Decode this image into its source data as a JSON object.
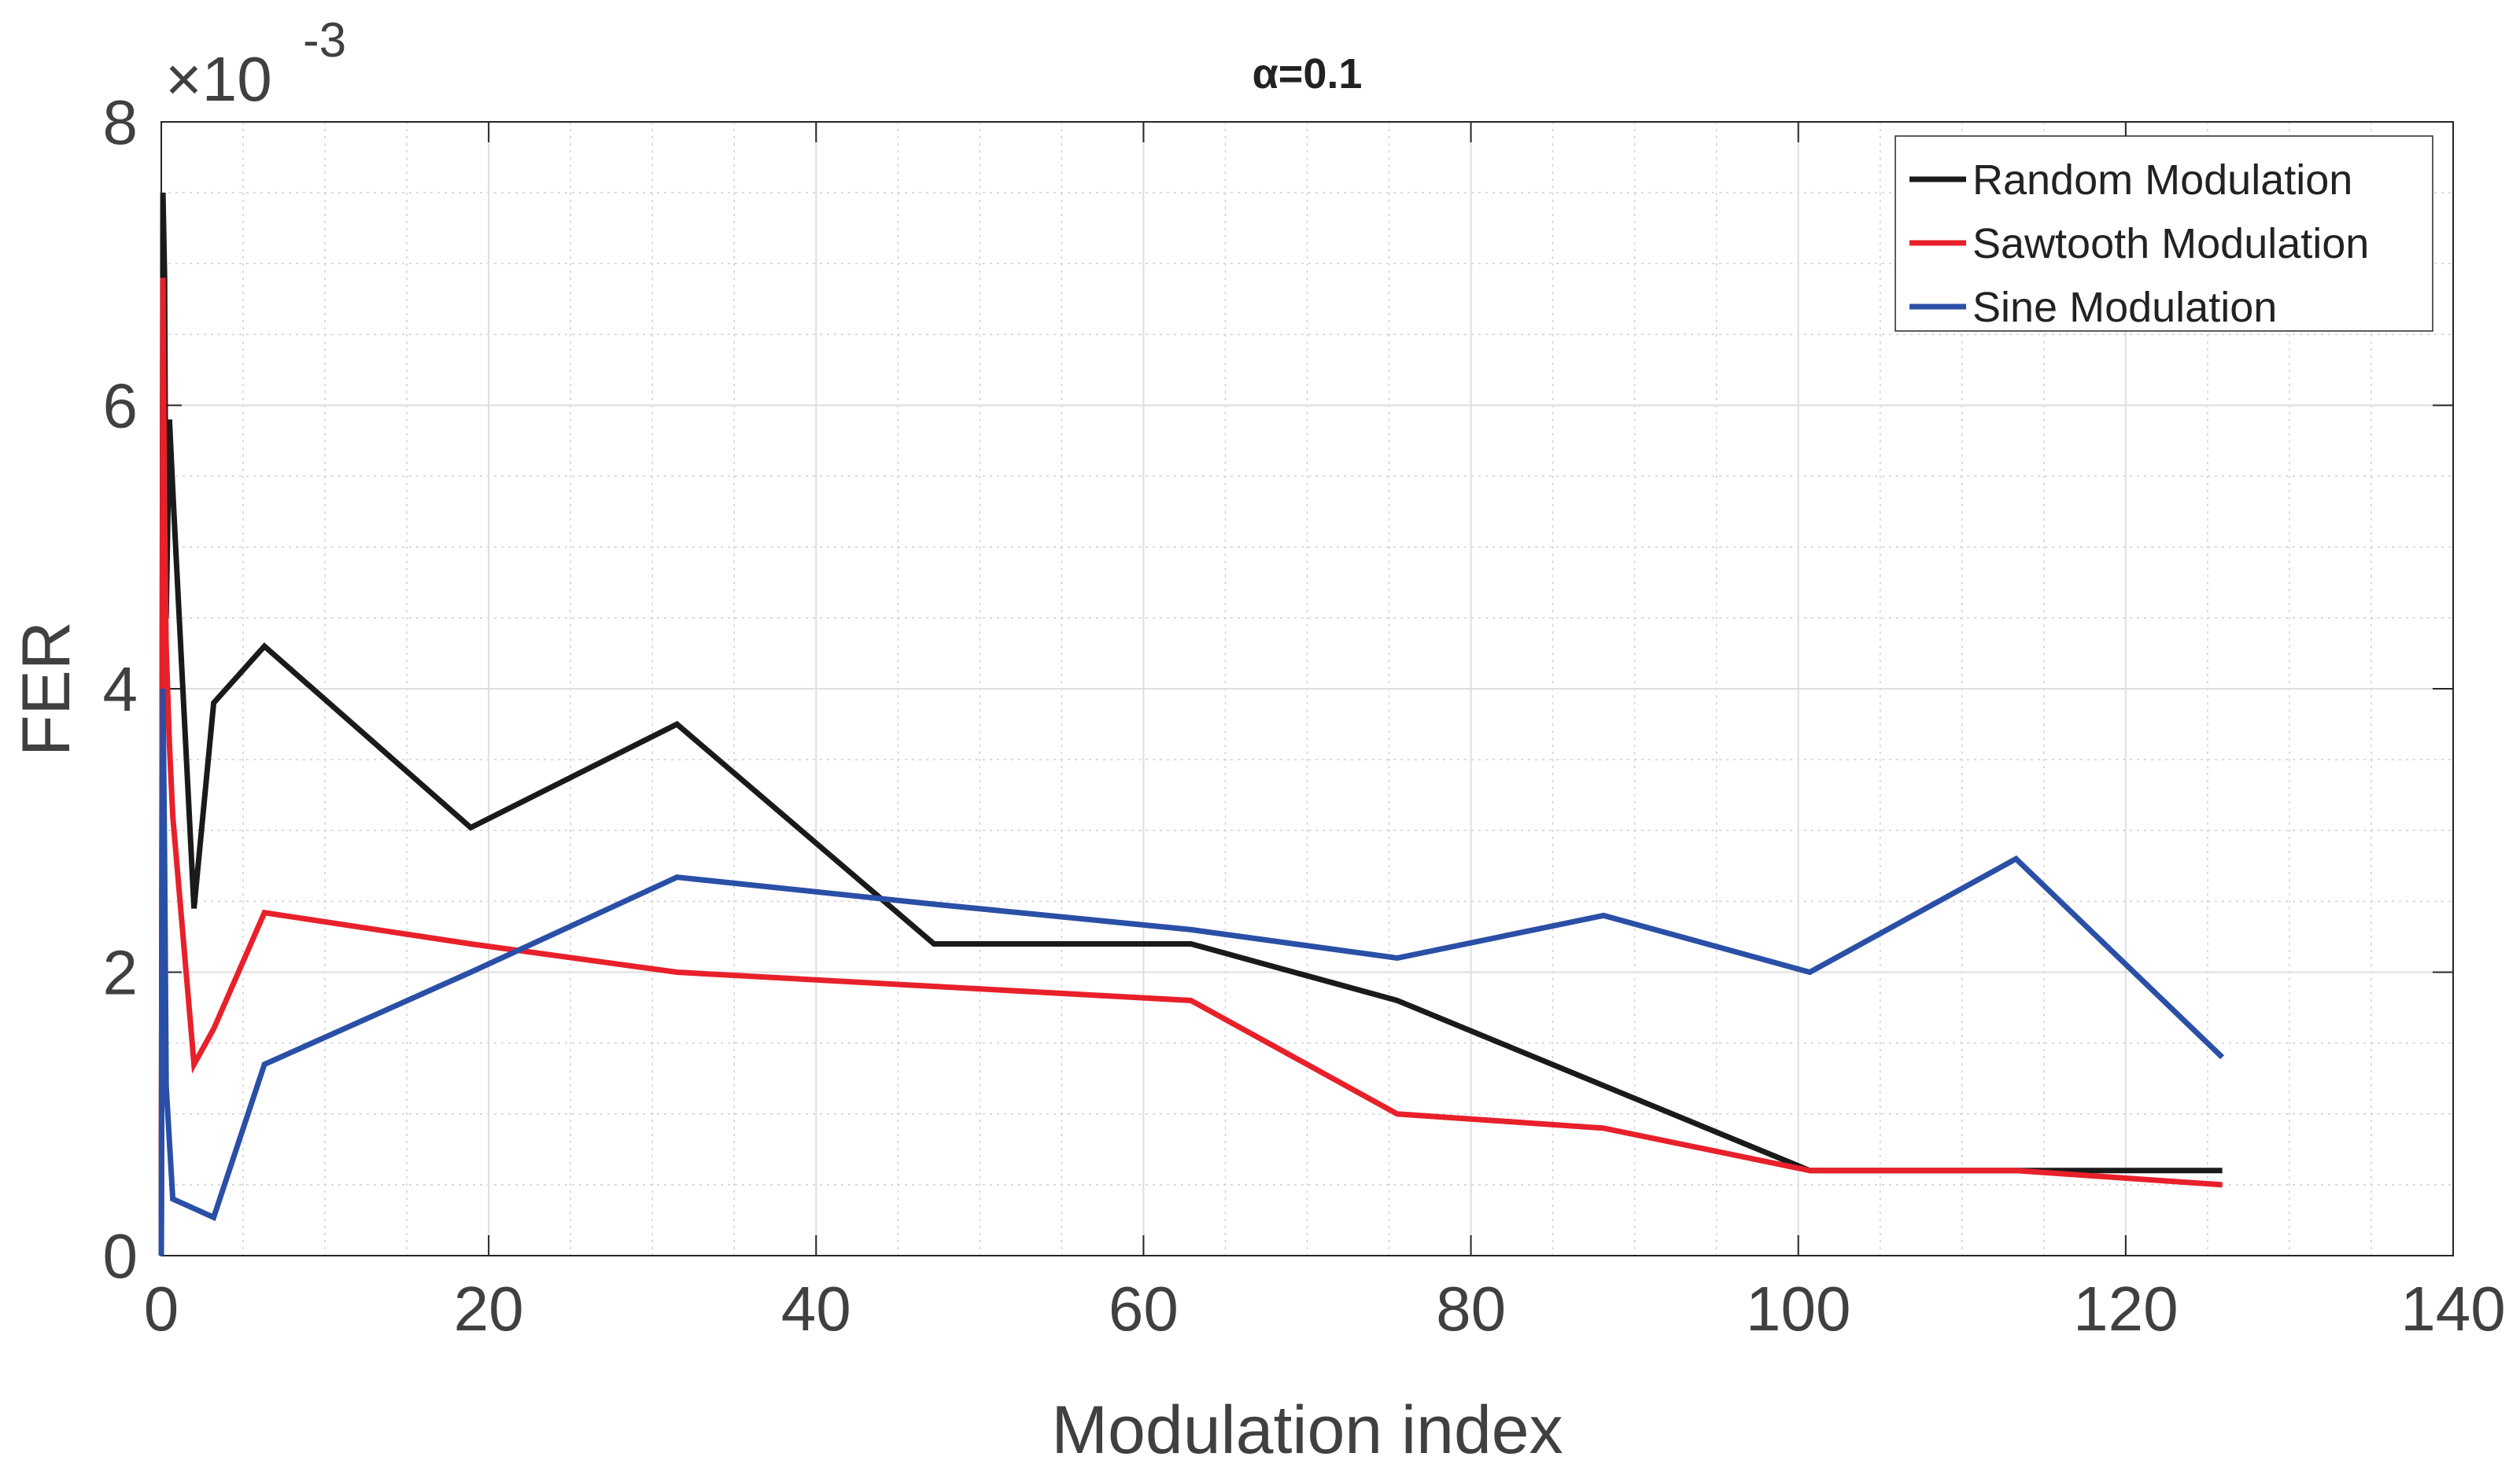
{
  "chart_data": {
    "type": "line",
    "title": "α=0.1",
    "xlabel": "Modulation index",
    "ylabel": "FER",
    "y_exponent_multiplier": "×10",
    "y_exponent_power": "-3",
    "xlim": [
      0,
      140
    ],
    "ylim": [
      0,
      8
    ],
    "x_ticks": [
      0,
      20,
      40,
      60,
      80,
      100,
      120,
      140
    ],
    "y_ticks": [
      0,
      2,
      4,
      6,
      8
    ],
    "x_tick_labels": [
      "0",
      "20",
      "40",
      "60",
      "80",
      "100",
      "120",
      "140"
    ],
    "y_tick_labels": [
      "0",
      "2",
      "4",
      "6",
      "8"
    ],
    "grid": true,
    "minor_grid": true,
    "legend_position": "top-right",
    "series": [
      {
        "name": "Random Modulation",
        "color": "#1a1a1a",
        "x": [
          0,
          0.1,
          0.2,
          0.3,
          0.5,
          0.7,
          2.0,
          3.2,
          6.3,
          18.9,
          31.5,
          47.2,
          62.9,
          75.5,
          88.1,
          100.7,
          113.3,
          125.9
        ],
        "y": [
          0,
          7.5,
          6.9,
          4.5,
          5.9,
          5.4,
          2.45,
          3.9,
          4.3,
          3.02,
          3.75,
          2.2,
          2.2,
          1.8,
          1.2,
          0.6,
          0.6,
          0.6
        ]
      },
      {
        "name": "Sawtooth Modulation",
        "color": "#e8202a",
        "x": [
          0,
          0.1,
          0.2,
          0.3,
          0.5,
          0.7,
          2.0,
          3.2,
          6.3,
          18.9,
          31.5,
          47.2,
          62.9,
          75.5,
          88.1,
          100.7,
          113.3,
          125.9
        ],
        "y": [
          0,
          6.9,
          5.2,
          4.3,
          3.6,
          3.1,
          1.35,
          1.6,
          2.42,
          2.2,
          2.0,
          1.9,
          1.8,
          1.0,
          0.9,
          0.6,
          0.6,
          0.5
        ]
      },
      {
        "name": "Sine Modulation",
        "color": "#2a4fa6",
        "x": [
          0,
          0.1,
          0.2,
          0.3,
          0.5,
          0.7,
          3.2,
          6.3,
          18.9,
          31.5,
          47.2,
          62.9,
          75.5,
          88.1,
          100.7,
          113.3,
          125.9
        ],
        "y": [
          0,
          4.0,
          2.8,
          1.2,
          0.8,
          0.4,
          0.27,
          1.35,
          2.0,
          2.67,
          2.48,
          2.3,
          2.1,
          2.4,
          2.0,
          2.8,
          1.4
        ]
      }
    ]
  }
}
